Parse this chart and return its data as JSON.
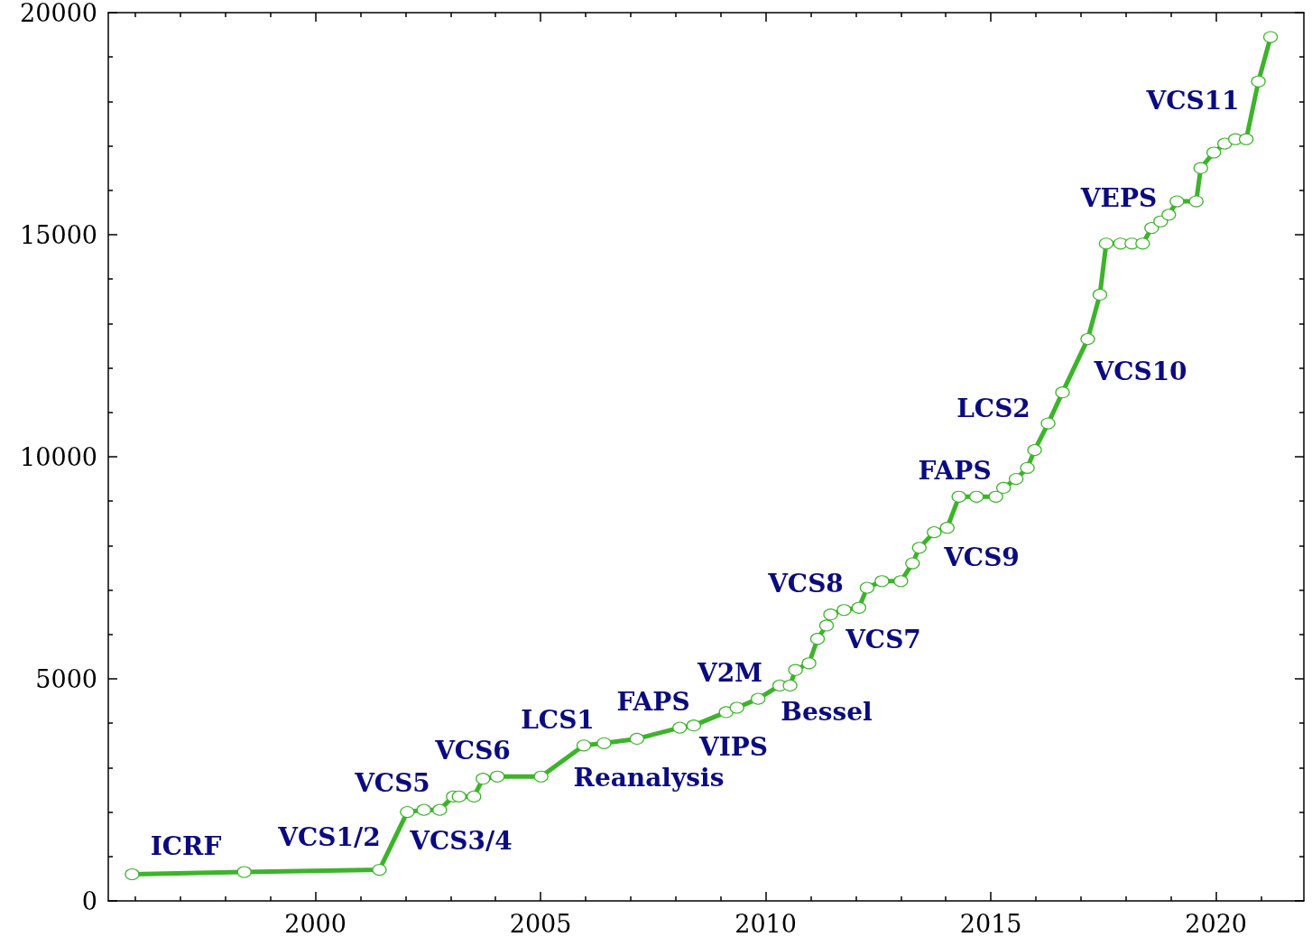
{
  "chart_data": {
    "type": "line",
    "color": "#3cb42a",
    "marker": "circle",
    "line_style": "solid",
    "grid": false,
    "x": [
      1995.93,
      1998.42,
      2001.42,
      2002.04,
      2002.41,
      2002.76,
      2003.06,
      2003.19,
      2003.52,
      2003.72,
      2004.04,
      2005.01,
      2005.96,
      2006.41,
      2007.14,
      2008.09,
      2008.4,
      2009.12,
      2009.36,
      2009.83,
      2010.31,
      2010.54,
      2010.66,
      2010.96,
      2011.15,
      2011.35,
      2011.44,
      2011.74,
      2012.07,
      2012.25,
      2012.58,
      2013.0,
      2013.26,
      2013.41,
      2013.74,
      2014.03,
      2014.29,
      2014.68,
      2015.11,
      2015.28,
      2015.56,
      2015.81,
      2015.97,
      2016.27,
      2016.59,
      2017.15,
      2017.42,
      2017.56,
      2017.88,
      2018.13,
      2018.37,
      2018.57,
      2018.77,
      2018.95,
      2019.13,
      2019.56,
      2019.66,
      2019.95,
      2020.19,
      2020.43,
      2020.67,
      2020.94,
      2021.21
    ],
    "values": [
      600,
      650,
      700,
      2000,
      2050,
      2050,
      2350,
      2350,
      2350,
      2750,
      2800,
      2800,
      3500,
      3550,
      3650,
      3900,
      3950,
      4250,
      4350,
      4550,
      4850,
      4850,
      5200,
      5350,
      5900,
      6200,
      6450,
      6550,
      6600,
      7050,
      7200,
      7200,
      7600,
      7950,
      8300,
      8400,
      9100,
      9100,
      9100,
      9300,
      9500,
      9750,
      10150,
      10750,
      11450,
      12650,
      13650,
      14800,
      14800,
      14800,
      14800,
      15150,
      15300,
      15450,
      15750,
      15750,
      16500,
      16850,
      17050,
      17150,
      17150,
      18450,
      19450
    ],
    "xlim": [
      1995.4,
      2021.95
    ],
    "xticks": [
      {
        "value": 1996,
        "label": null
      },
      {
        "value": 1997,
        "label": null
      },
      {
        "value": 1998,
        "label": null
      },
      {
        "value": 1999,
        "label": null
      },
      2000,
      {
        "value": 2001,
        "label": null
      },
      {
        "value": 2002,
        "label": null
      },
      {
        "value": 2003,
        "label": null
      },
      {
        "value": 2004,
        "label": null
      },
      2005,
      {
        "value": 2006,
        "label": null
      },
      {
        "value": 2007,
        "label": null
      },
      {
        "value": 2008,
        "label": null
      },
      {
        "value": 2009,
        "label": null
      },
      2010,
      {
        "value": 2011,
        "label": null
      },
      {
        "value": 2012,
        "label": null
      },
      {
        "value": 2013,
        "label": null
      },
      {
        "value": 2014,
        "label": null
      },
      2015,
      {
        "value": 2016,
        "label": null
      },
      {
        "value": 2017,
        "label": null
      },
      {
        "value": 2018,
        "label": null
      },
      {
        "value": 2019,
        "label": null
      },
      2020,
      {
        "value": 2021,
        "label": null
      }
    ],
    "ylim": [
      0,
      20000
    ],
    "yticks": [
      0,
      {
        "value": 1000,
        "label": null
      },
      {
        "value": 2000,
        "label": null
      },
      {
        "value": 3000,
        "label": null
      },
      {
        "value": 4000,
        "label": null
      },
      5000,
      {
        "value": 6000,
        "label": null
      },
      {
        "value": 7000,
        "label": null
      },
      {
        "value": 8000,
        "label": null
      },
      {
        "value": 9000,
        "label": null
      },
      10000,
      {
        "value": 11000,
        "label": null
      },
      {
        "value": 12000,
        "label": null
      },
      {
        "value": 13000,
        "label": null
      },
      {
        "value": 14000,
        "label": null
      },
      15000,
      {
        "value": 16000,
        "label": null
      },
      {
        "value": 17000,
        "label": null
      },
      {
        "value": 18000,
        "label": null
      },
      {
        "value": 19000,
        "label": null
      },
      20000
    ],
    "annotations": [
      "ICRF",
      "VCS1/2",
      "VCS3/4",
      "VCS5",
      "VCS6",
      "LCS1",
      "Reanalysis",
      "FAPS",
      "VIPS",
      "V2M",
      "Bessel",
      "VCS7",
      "VCS8",
      "VCS9",
      "FAPS",
      "LCS2",
      "VCS10",
      "VEPS",
      "VCS11"
    ]
  }
}
